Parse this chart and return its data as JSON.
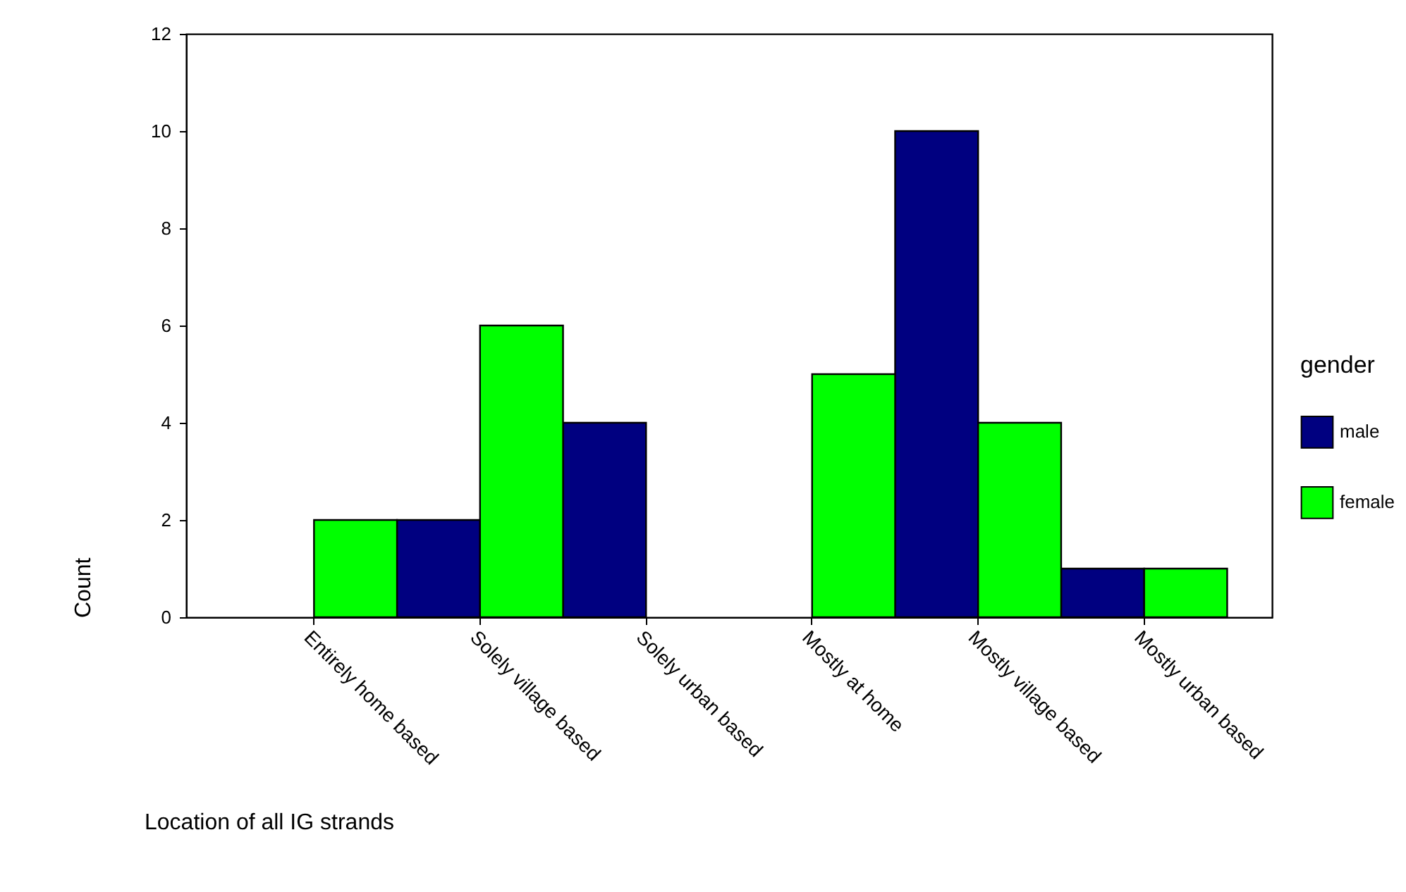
{
  "chart_data": {
    "type": "bar",
    "xlabel": "Location of all IG strands",
    "ylabel": "Count",
    "legend_title": "gender",
    "categories": [
      "Entirely home based",
      "Solely village based",
      "Solely urban based",
      "Mostly at home",
      "Mostly village based",
      "Mostly urban based"
    ],
    "series": [
      {
        "name": "male",
        "color": "#000080",
        "values": [
          null,
          2,
          4,
          null,
          10,
          1
        ]
      },
      {
        "name": "female",
        "color": "#00ff00",
        "values": [
          2,
          6,
          null,
          5,
          4,
          1
        ]
      }
    ],
    "ylim": [
      0,
      12
    ],
    "yticks": [
      0,
      2,
      4,
      6,
      8,
      10,
      12
    ],
    "grid": false,
    "legend": "right"
  }
}
